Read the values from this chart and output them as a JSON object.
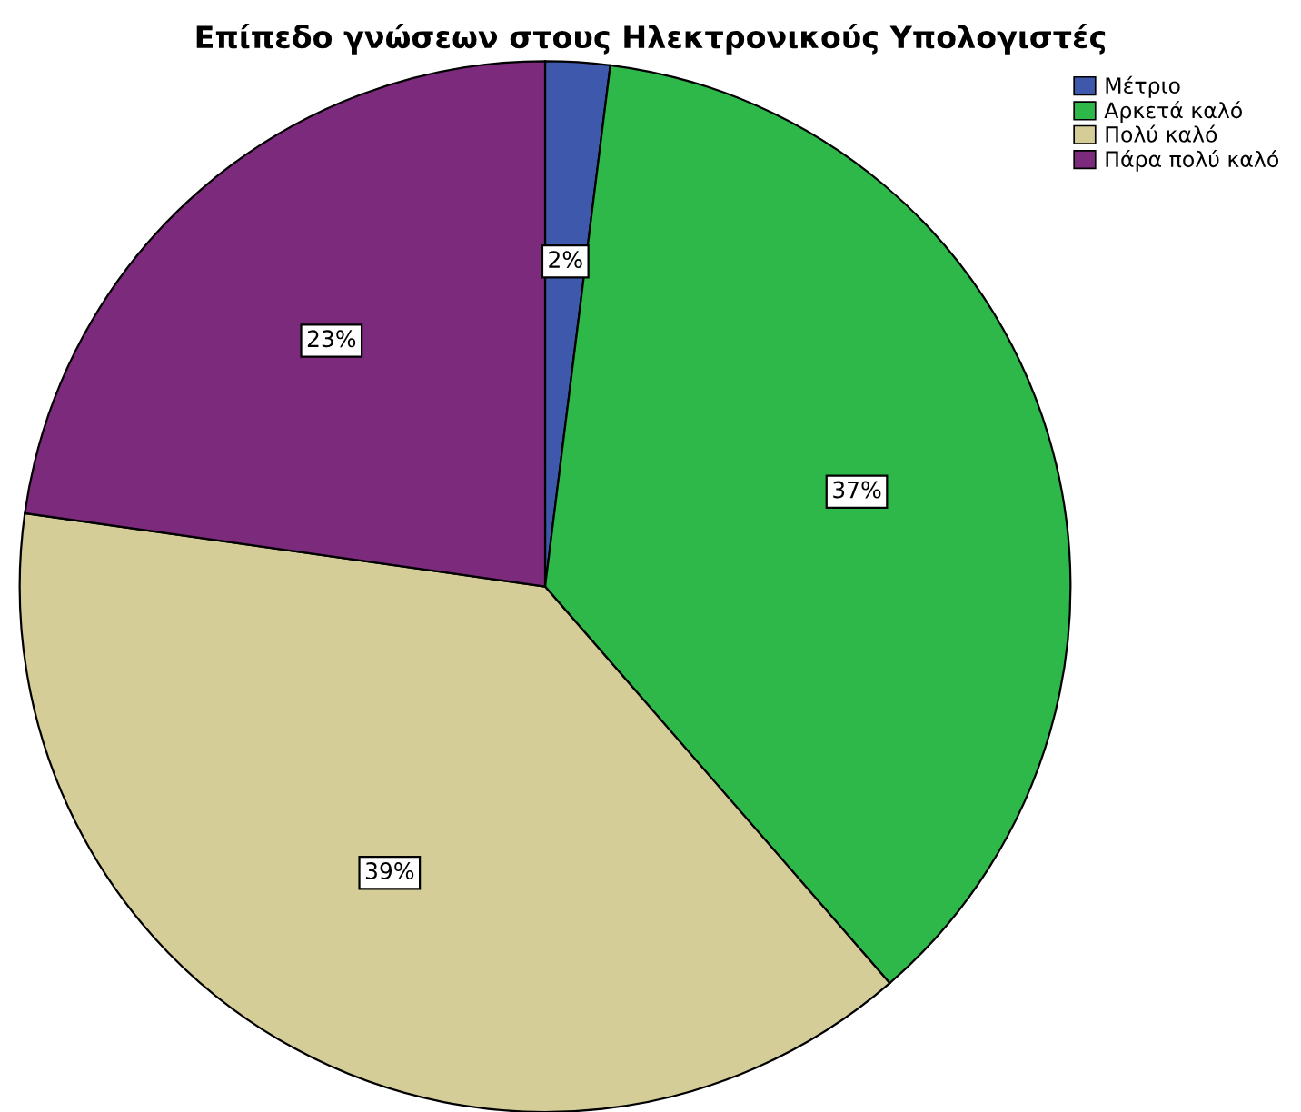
{
  "chart_data": {
    "type": "pie",
    "title": "Επίπεδο γνώσεων στους Ηλεκτρονικούς Υπολογιστές",
    "categories": [
      "Μέτριο",
      "Αρκετά καλό",
      "Πολύ καλό",
      "Πάρα πολύ καλό"
    ],
    "values": [
      2,
      37,
      39,
      23
    ],
    "colors": [
      "#3e58ac",
      "#2fb84a",
      "#d5cd98",
      "#7b2a7c"
    ],
    "value_labels": [
      "2%",
      "37%",
      "39%",
      "23%"
    ],
    "legend": "top right"
  }
}
